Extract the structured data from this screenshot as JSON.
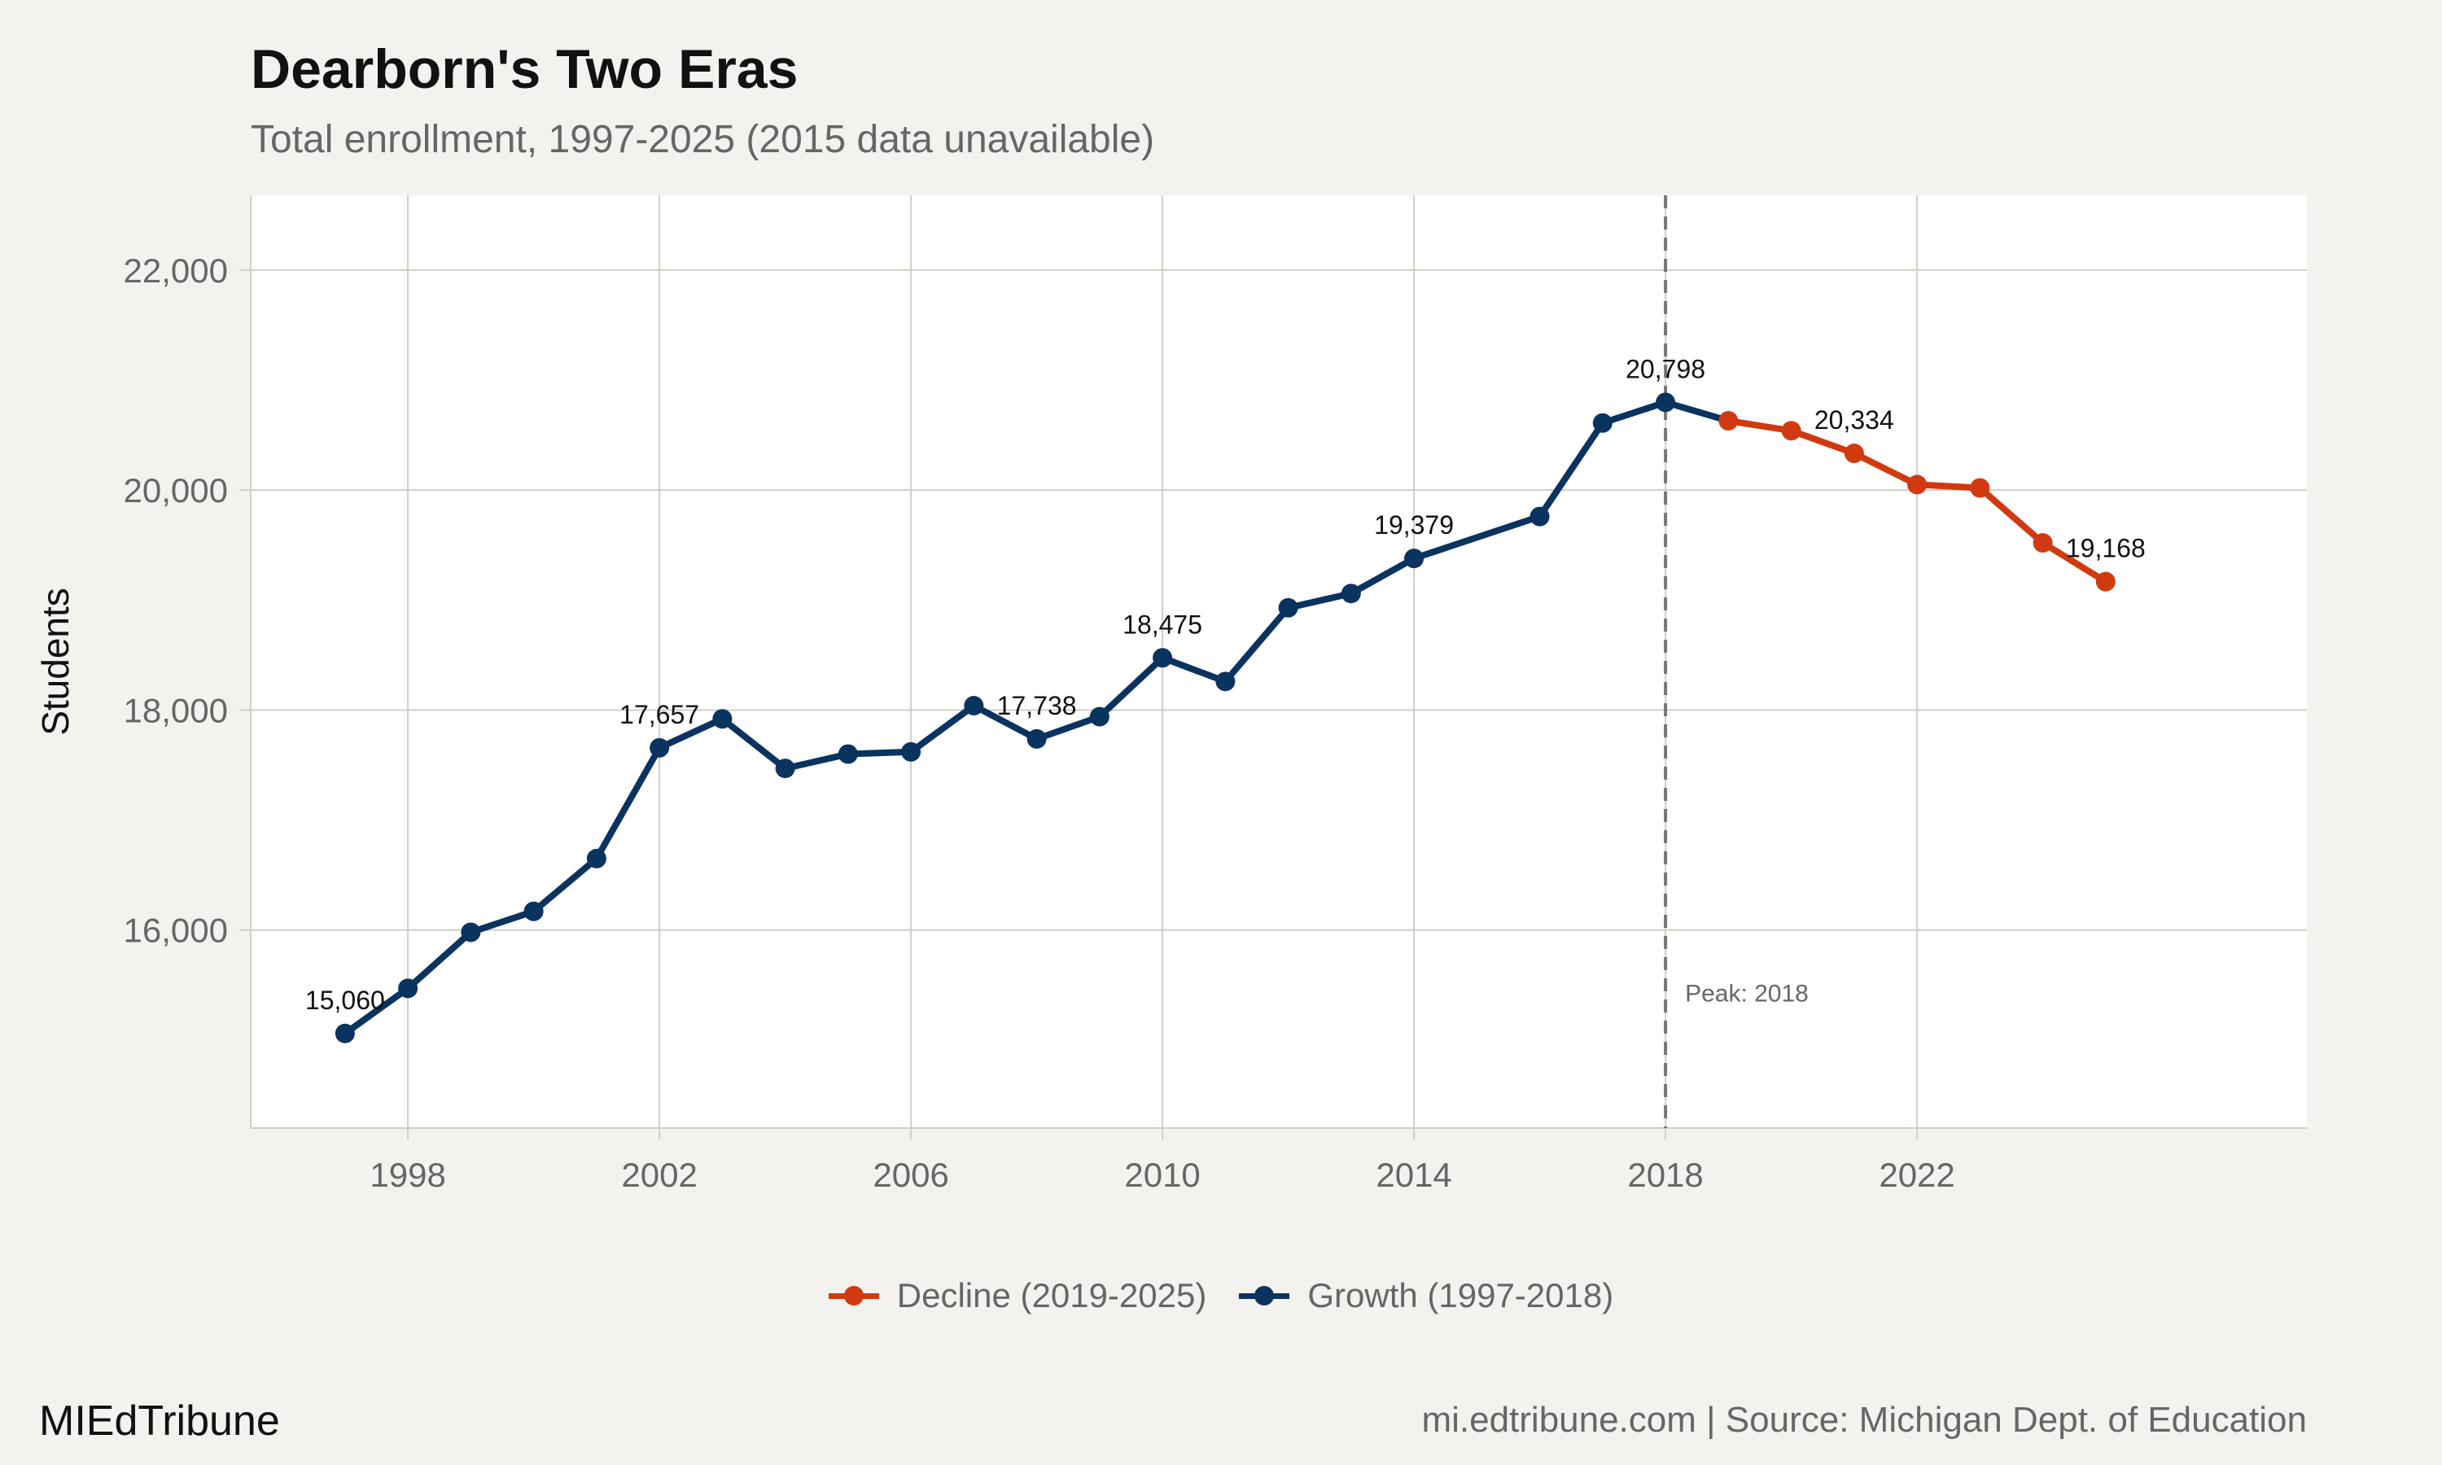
{
  "header": {
    "title": "Dearborn's Two Eras",
    "subtitle": "Total enrollment, 1997-2025 (2015 data unavailable)"
  },
  "footer": {
    "brand": "MIEdTribune",
    "source": "mi.edtribune.com | Source: Michigan Dept. of Education"
  },
  "colors": {
    "growth": "#0b3360",
    "decline": "#d13a10",
    "panel": "#ffffff",
    "background": "#f4f2ee",
    "grid": "#cfcfc7",
    "peak_line": "#777777"
  },
  "chart_data": {
    "type": "line",
    "title": "Dearborn's Two Eras",
    "subtitle": "Total enrollment, 1997-2025 (2015 data unavailable)",
    "xlabel": "",
    "ylabel": "Students",
    "xlim": [
      1995.5,
      2028.2
    ],
    "ylim": [
      14200,
      22680
    ],
    "x_ticks": [
      1998,
      2002,
      2006,
      2010,
      2014,
      2018,
      2022
    ],
    "y_ticks": [
      16000,
      18000,
      20000,
      22000
    ],
    "y_tick_labels": [
      "16,000",
      "18,000",
      "20,000",
      "22,000"
    ],
    "grid": true,
    "legend_position": "bottom",
    "series": [
      {
        "name": "Growth (1997-2018)",
        "color": "#0b3360",
        "x": [
          1997,
          1998,
          1999,
          2000,
          2001,
          2002,
          2003,
          2004,
          2005,
          2006,
          2007,
          2008,
          2009,
          2010,
          2011,
          2012,
          2013,
          2014,
          2016,
          2017,
          2018
        ],
        "y": [
          15060,
          15470,
          15980,
          16170,
          16650,
          17657,
          17920,
          17470,
          17600,
          17620,
          18040,
          17738,
          17940,
          18475,
          18260,
          18930,
          19060,
          19379,
          19760,
          20610,
          20798
        ]
      },
      {
        "name": "Decline (2019-2025)",
        "color": "#d13a10",
        "x": [
          2019,
          2020,
          2021,
          2022,
          2023,
          2024,
          2025
        ],
        "y": [
          20630,
          20540,
          20334,
          20050,
          20020,
          19520,
          19168
        ]
      }
    ],
    "connector": {
      "from": [
        2018,
        20798
      ],
      "to": [
        2019,
        20630
      ],
      "color": "#0b3360"
    },
    "data_labels": [
      {
        "x": 1997,
        "y": 15060,
        "text": "15,060"
      },
      {
        "x": 2002,
        "y": 17657,
        "text": "17,657"
      },
      {
        "x": 2008,
        "y": 17738,
        "text": "17,738"
      },
      {
        "x": 2010,
        "y": 18475,
        "text": "18,475"
      },
      {
        "x": 2014,
        "y": 19379,
        "text": "19,379"
      },
      {
        "x": 2018,
        "y": 20798,
        "text": "20,798"
      },
      {
        "x": 2021,
        "y": 20334,
        "text": "20,334"
      },
      {
        "x": 2025,
        "y": 19168,
        "text": "19,168"
      }
    ],
    "reference_line": {
      "x": 2018,
      "label": "Peak: 2018",
      "style": "dashed"
    }
  }
}
